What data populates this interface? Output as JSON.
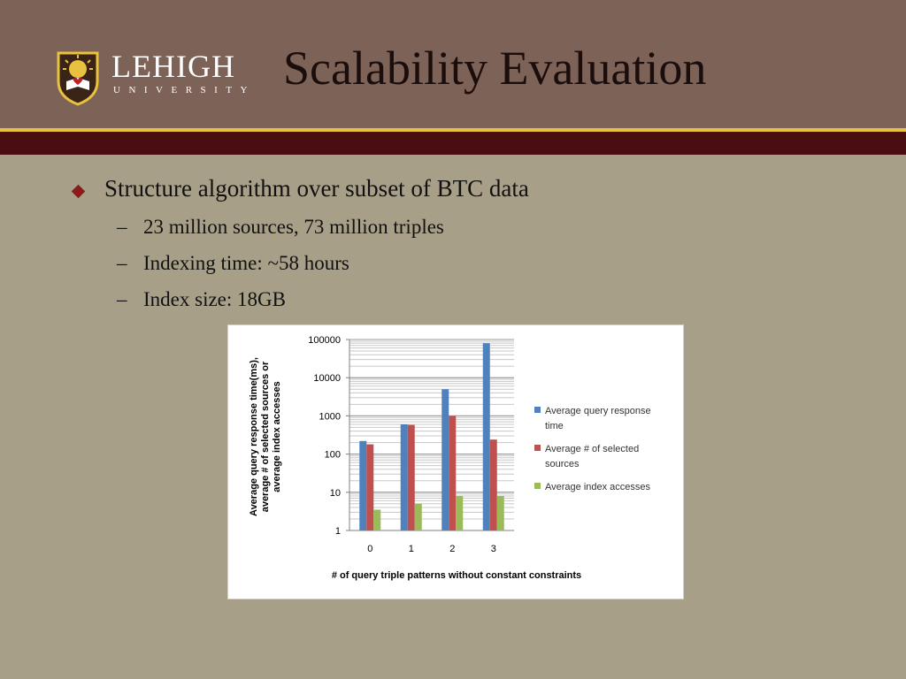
{
  "header": {
    "title": "Scalability Evaluation",
    "logo_name": "LEHIGH",
    "logo_sub": "UNIVERSITY"
  },
  "content": {
    "bullet": "Structure algorithm over subset of BTC data",
    "sub_bullets": [
      "23 million sources, 73 million triples",
      "Indexing time: ~58 hours",
      "Index size: 18GB"
    ]
  },
  "colors": {
    "header_bg": "#7d6257",
    "accent_gold": "#e8c23f",
    "accent_maroon": "#4a0d12",
    "body_bg": "#a89f88",
    "bullet": "#8b1a1a"
  },
  "chart_data": {
    "type": "bar",
    "yscale": "log",
    "ylim": [
      1,
      100000
    ],
    "yticks": [
      "1",
      "10",
      "100",
      "1000",
      "10000",
      "100000"
    ],
    "categories": [
      "0",
      "1",
      "2",
      "3"
    ],
    "xlabel": "# of query triple patterns without constant constraints",
    "ylabel_lines": [
      "Average query response time(ms),",
      "average # of selected sources or",
      "average index accesses"
    ],
    "legend_position": "right",
    "grid": true,
    "series": [
      {
        "name": "Average query response time",
        "name_lines": [
          "Average query response",
          "time"
        ],
        "color": "#4f81bd",
        "values": [
          220,
          600,
          5000,
          80000
        ]
      },
      {
        "name": "Average # of selected sources",
        "name_lines": [
          "Average # of selected",
          "sources"
        ],
        "color": "#c0504d",
        "values": [
          180,
          580,
          1000,
          240
        ]
      },
      {
        "name": "Average index accesses",
        "name_lines": [
          "Average index accesses"
        ],
        "color": "#9bbb59",
        "values": [
          3.5,
          5,
          8,
          8
        ]
      }
    ]
  }
}
